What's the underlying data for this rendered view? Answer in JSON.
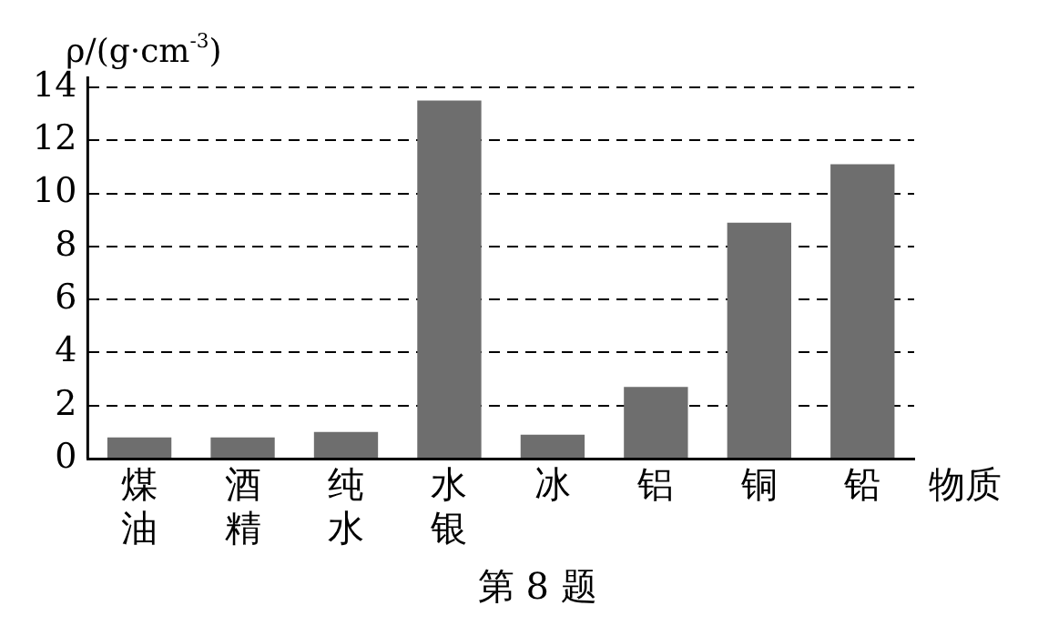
{
  "chart_data": {
    "type": "bar",
    "ylabel": "ρ/(g·cm$^{-3}$)",
    "xlabel": "物质",
    "annotations": [
      "第 8 题"
    ],
    "categories": [
      "煤油",
      "酒精",
      "纯水",
      "水银",
      "冰",
      "铝",
      "铜",
      "铅"
    ],
    "values": [
      0.8,
      0.8,
      1.0,
      13.5,
      0.9,
      2.7,
      8.9,
      11.1
    ],
    "color": "#6e6e6e",
    "ylim": [
      0,
      14
    ],
    "yticks": [
      0,
      2,
      4,
      6,
      8,
      10,
      12,
      14
    ],
    "grid": "y",
    "legend": false
  }
}
